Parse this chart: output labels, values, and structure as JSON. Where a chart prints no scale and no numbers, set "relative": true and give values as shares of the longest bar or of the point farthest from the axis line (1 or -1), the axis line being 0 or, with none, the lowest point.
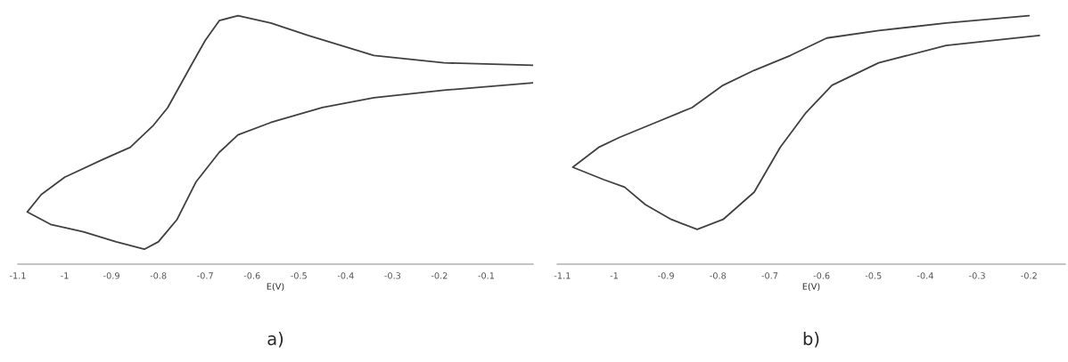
{
  "chart_data": [
    {
      "type": "line",
      "title": "a)",
      "xlabel": "E(V)",
      "relative": true,
      "xlim": [
        -1.1,
        0
      ],
      "xticks": [
        -1.1,
        -1,
        -0.9,
        -0.8,
        -0.7,
        -0.6,
        -0.5,
        -0.4,
        -0.3,
        -0.2,
        -0.1
      ],
      "tick_labels": "x",
      "grid": false,
      "legend": false,
      "series": [
        {
          "color": "#404040",
          "x": [
            0.0,
            -0.19,
            -0.34,
            -0.48,
            -0.56,
            -0.63,
            -0.67,
            -0.7,
            -0.73,
            -0.78,
            -0.81,
            -0.86,
            -0.92,
            -1.0,
            -1.05,
            -1.08,
            -1.03,
            -0.96,
            -0.89,
            -0.83,
            -0.8,
            -0.76,
            -0.72,
            -0.67,
            -0.63,
            -0.56,
            -0.45,
            -0.34,
            -0.19,
            0.0
          ],
          "values": [
            0.8,
            0.81,
            0.84,
            0.92,
            0.97,
            1.0,
            0.98,
            0.9,
            0.8,
            0.63,
            0.56,
            0.47,
            0.42,
            0.35,
            0.28,
            0.21,
            0.16,
            0.13,
            0.09,
            0.06,
            0.09,
            0.18,
            0.33,
            0.45,
            0.52,
            0.57,
            0.63,
            0.67,
            0.7,
            0.73
          ]
        }
      ]
    },
    {
      "type": "line",
      "title": "b)",
      "xlabel": "E(V)",
      "relative": true,
      "xlim": [
        -1.11,
        -0.13
      ],
      "xticks": [
        -1.1,
        -1,
        -0.9,
        -0.8,
        -0.7,
        -0.6,
        -0.5,
        -0.4,
        -0.3,
        -0.2
      ],
      "tick_labels": "x",
      "grid": false,
      "legend": false,
      "series": [
        {
          "color": "#404040",
          "x": [
            -0.2,
            -0.36,
            -0.49,
            -0.59,
            -0.66,
            -0.73,
            -0.79,
            -0.85,
            -0.92,
            -0.99,
            -1.03,
            -1.08,
            -1.02,
            -0.98,
            -0.94,
            -0.89,
            -0.84,
            -0.79,
            -0.73,
            -0.68,
            -0.63,
            -0.58,
            -0.49,
            -0.36,
            -0.18
          ],
          "values": [
            1.0,
            0.97,
            0.94,
            0.91,
            0.84,
            0.78,
            0.72,
            0.63,
            0.57,
            0.51,
            0.47,
            0.39,
            0.34,
            0.31,
            0.24,
            0.18,
            0.14,
            0.18,
            0.29,
            0.47,
            0.61,
            0.72,
            0.81,
            0.88,
            0.92
          ]
        }
      ]
    }
  ]
}
